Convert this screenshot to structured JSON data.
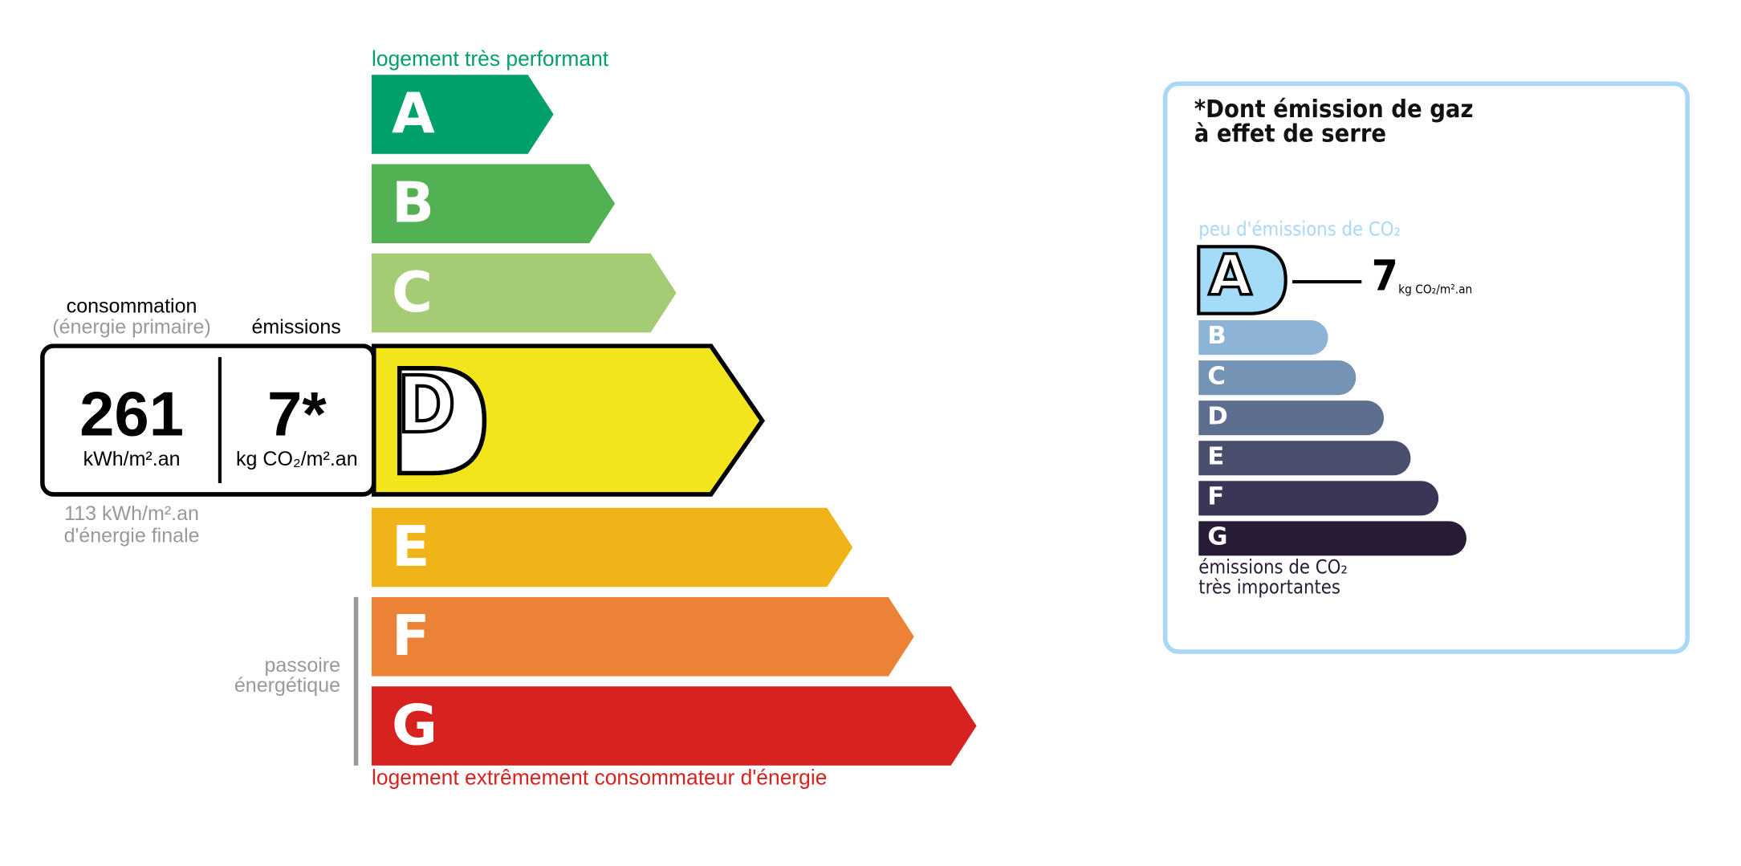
{
  "energy_label": {
    "top_caption": "logement très performant",
    "bottom_caption": "logement extrêmement consommateur d'énergie",
    "passoire_label": [
      "passoire",
      "énergétique"
    ],
    "classes": [
      {
        "letter": "A",
        "color": "#00a06a"
      },
      {
        "letter": "B",
        "color": "#52b153"
      },
      {
        "letter": "C",
        "color": "#a5cc74"
      },
      {
        "letter": "D",
        "color": "#f2e51b"
      },
      {
        "letter": "E",
        "color": "#f0b418"
      },
      {
        "letter": "F",
        "color": "#eb8235"
      },
      {
        "letter": "G",
        "color": "#d7221f"
      }
    ],
    "current_class": "D",
    "consumption_header": "consommation",
    "consumption_subheader": "(énergie primaire)",
    "emissions_header": "émissions",
    "consumption_value": "261",
    "consumption_unit": "kWh/m².an",
    "emissions_value": "7*",
    "emissions_unit": "kg CO₂/m².an",
    "final_energy_value": "113 kWh/m².an",
    "final_energy_label": "d'énergie finale"
  },
  "ges_label": {
    "title_line1": "*Dont émission de gaz",
    "title_line2": "à effet de serre",
    "top_caption": "peu d'émissions de CO₂",
    "bottom_caption_line1": "émissions de CO₂",
    "bottom_caption_line2": "très importantes",
    "classes": [
      {
        "letter": "A",
        "color": "#a4dbf7"
      },
      {
        "letter": "B",
        "color": "#8db4d6"
      },
      {
        "letter": "C",
        "color": "#7593b4"
      },
      {
        "letter": "D",
        "color": "#5e6e8f"
      },
      {
        "letter": "E",
        "color": "#4b4f6e"
      },
      {
        "letter": "F",
        "color": "#393755"
      },
      {
        "letter": "G",
        "color": "#281b35"
      }
    ],
    "current_class": "A",
    "value": "7",
    "unit": "kg CO₂/m².an",
    "border_color": "#a8d8f5"
  }
}
